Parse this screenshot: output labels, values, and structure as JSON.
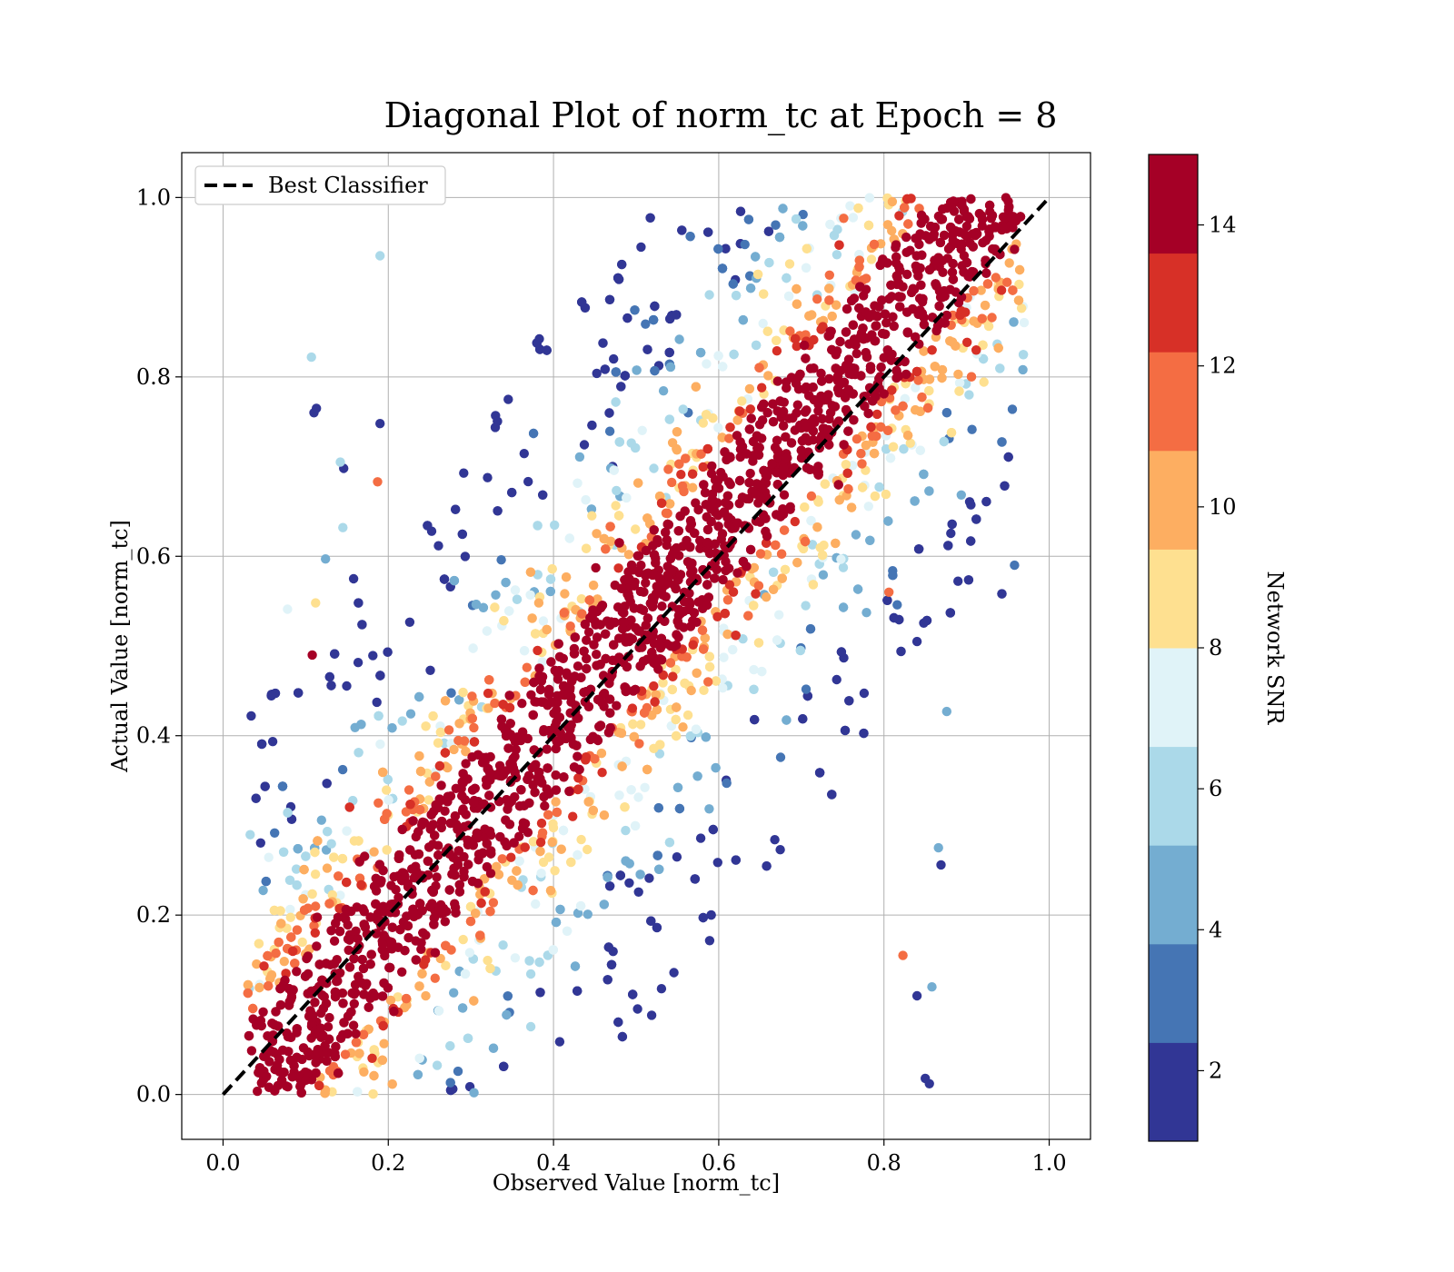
{
  "chart_data": {
    "type": "scatter",
    "title": "Diagonal Plot of norm_tc at Epoch = 8",
    "xlabel": "Observed Value [norm_tc]",
    "ylabel": "Actual Value [norm_tc]",
    "xlim": [
      -0.05,
      1.05
    ],
    "ylim": [
      -0.05,
      1.05
    ],
    "x_ticks": [
      "0.0",
      "0.2",
      "0.4",
      "0.6",
      "0.8",
      "1.0"
    ],
    "y_ticks": [
      "0.0",
      "0.2",
      "0.4",
      "0.6",
      "0.8",
      "1.0"
    ],
    "grid": true,
    "legend": {
      "placement": "top-left",
      "entries": [
        "Best Classifier"
      ]
    },
    "reference_line": {
      "label": "Best Classifier",
      "x": [
        0,
        1
      ],
      "y": [
        0,
        1
      ],
      "style": "dashed",
      "color": "#000000"
    },
    "point_cloud": {
      "x_range": [
        0.03,
        0.97
      ],
      "y_range": [
        0.0,
        1.0
      ],
      "trend": "snr decreases with distance from the diagonal; high-snr points form a dense band along y = x"
    },
    "sample_points": [
      {
        "x": 0.107,
        "y": 0.822,
        "snr": 5.5
      },
      {
        "x": 0.11,
        "y": 0.76,
        "snr": 2
      },
      {
        "x": 0.113,
        "y": 0.765,
        "snr": 2
      },
      {
        "x": 0.19,
        "y": 0.935,
        "snr": 5.5
      },
      {
        "x": 0.142,
        "y": 0.705,
        "snr": 5.5
      },
      {
        "x": 0.146,
        "y": 0.698,
        "snr": 2
      },
      {
        "x": 0.124,
        "y": 0.597,
        "snr": 4
      },
      {
        "x": 0.145,
        "y": 0.632,
        "snr": 6
      },
      {
        "x": 0.078,
        "y": 0.541,
        "snr": 7
      },
      {
        "x": 0.112,
        "y": 0.548,
        "snr": 9
      },
      {
        "x": 0.108,
        "y": 0.49,
        "snr": 15
      },
      {
        "x": 0.19,
        "y": 0.748,
        "snr": 2
      },
      {
        "x": 0.187,
        "y": 0.683,
        "snr": 11
      },
      {
        "x": 0.958,
        "y": 0.59,
        "snr": 3
      },
      {
        "x": 0.876,
        "y": 0.427,
        "snr": 4
      },
      {
        "x": 0.869,
        "y": 0.256,
        "snr": 2
      },
      {
        "x": 0.866,
        "y": 0.275,
        "snr": 4
      },
      {
        "x": 0.84,
        "y": 0.11,
        "snr": 2
      },
      {
        "x": 0.858,
        "y": 0.12,
        "snr": 4
      },
      {
        "x": 0.855,
        "y": 0.012,
        "snr": 2
      },
      {
        "x": 0.85,
        "y": 0.018,
        "snr": 2
      },
      {
        "x": 0.823,
        "y": 0.155,
        "snr": 11
      },
      {
        "x": 0.84,
        "y": 0.505,
        "snr": 2
      },
      {
        "x": 0.806,
        "y": 0.56,
        "snr": 11
      },
      {
        "x": 0.838,
        "y": 0.788,
        "snr": 7
      },
      {
        "x": 0.903,
        "y": 0.78,
        "snr": 6
      }
    ],
    "colorbar": {
      "label": "Network SNR",
      "range": [
        1,
        15
      ],
      "ticks": [
        "2",
        "4",
        "6",
        "8",
        "10",
        "12",
        "14"
      ],
      "colors": [
        "#313695",
        "#4575b4",
        "#74add1",
        "#abd9e9",
        "#e0f3f8",
        "#fee090",
        "#fdae61",
        "#f46d43",
        "#d73027",
        "#a50026"
      ]
    }
  }
}
